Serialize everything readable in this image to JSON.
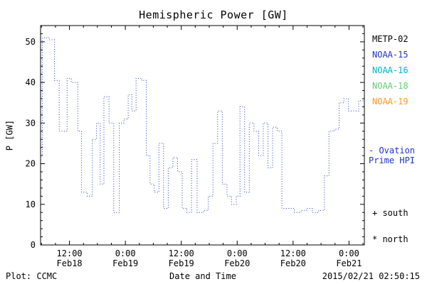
{
  "chart_data": {
    "type": "line",
    "style": "dotted-step",
    "title": "Hemispheric Power [GW]",
    "xlabel": "Date and Time",
    "ylabel": "P [GW]",
    "ylim": [
      0,
      54
    ],
    "xlim_hours": [
      5.8,
      75.3
    ],
    "x_origin": "hours since 2015-02-18 00:00",
    "y_ticks": [
      0,
      10,
      20,
      30,
      40,
      50
    ],
    "y_minor_step": 2,
    "x_minor_step_hours": 3,
    "x_major_ticks": [
      {
        "hour": 12,
        "time": "12:00",
        "date": "Feb18"
      },
      {
        "hour": 24,
        "time": "0:00",
        "date": "Feb19"
      },
      {
        "hour": 36,
        "time": "12:00",
        "date": "Feb19"
      },
      {
        "hour": 48,
        "time": "0:00",
        "date": "Feb20"
      },
      {
        "hour": 60,
        "time": "12:00",
        "date": "Feb20"
      },
      {
        "hour": 72,
        "time": "0:00",
        "date": "Feb21"
      }
    ],
    "series": [
      {
        "name": "Ovation Prime HPI",
        "color": "#2233cc",
        "points": [
          [
            5.9,
            22
          ],
          [
            6.2,
            51
          ],
          [
            7.6,
            50.5
          ],
          [
            8.8,
            40.5
          ],
          [
            9.8,
            28
          ],
          [
            11.5,
            41
          ],
          [
            12.4,
            40
          ],
          [
            13.8,
            28
          ],
          [
            14.6,
            13
          ],
          [
            15.8,
            12
          ],
          [
            16.9,
            26
          ],
          [
            17.8,
            30
          ],
          [
            18.6,
            15
          ],
          [
            19.4,
            36.5
          ],
          [
            20.5,
            30
          ],
          [
            21.5,
            8
          ],
          [
            22.7,
            30
          ],
          [
            23.7,
            31
          ],
          [
            24.6,
            37
          ],
          [
            25.4,
            33
          ],
          [
            26.3,
            41
          ],
          [
            27.5,
            40.5
          ],
          [
            28.5,
            22
          ],
          [
            29.3,
            15
          ],
          [
            30.2,
            13
          ],
          [
            31.2,
            25
          ],
          [
            32.2,
            9
          ],
          [
            33.2,
            19
          ],
          [
            34.2,
            21.5
          ],
          [
            35.2,
            18
          ],
          [
            36.2,
            9
          ],
          [
            37.2,
            8
          ],
          [
            38.2,
            21
          ],
          [
            39.4,
            8
          ],
          [
            40.8,
            8.5
          ],
          [
            41.8,
            12
          ],
          [
            42.8,
            25
          ],
          [
            43.8,
            33
          ],
          [
            44.8,
            15
          ],
          [
            45.8,
            12
          ],
          [
            46.8,
            10
          ],
          [
            47.8,
            12
          ],
          [
            48.6,
            34
          ],
          [
            49.6,
            13
          ],
          [
            50.6,
            30
          ],
          [
            51.6,
            28
          ],
          [
            52.6,
            22
          ],
          [
            53.6,
            30
          ],
          [
            54.6,
            19
          ],
          [
            55.6,
            29
          ],
          [
            56.6,
            28
          ],
          [
            57.6,
            9
          ],
          [
            58.9,
            9
          ],
          [
            60.3,
            8
          ],
          [
            61.7,
            8.5
          ],
          [
            62.9,
            9
          ],
          [
            64.1,
            8
          ],
          [
            65.5,
            8.5
          ],
          [
            66.7,
            17
          ],
          [
            67.7,
            28
          ],
          [
            68.9,
            28.5
          ],
          [
            69.9,
            35
          ],
          [
            70.9,
            36
          ],
          [
            71.9,
            33
          ],
          [
            72.9,
            33
          ],
          [
            74.1,
            35.5
          ]
        ]
      }
    ]
  },
  "legend": {
    "satellites": [
      {
        "label": "METP-02",
        "color": "#000000"
      },
      {
        "label": "NOAA-15",
        "color": "#2233cc"
      },
      {
        "label": "NOAA-16",
        "color": "#00b2c8"
      },
      {
        "label": "NOAA-18",
        "color": "#63cc74"
      },
      {
        "label": "NOAA-19",
        "color": "#ff9822"
      }
    ],
    "ovation_line1": "- Ovation",
    "ovation_line2": "Prime HPI",
    "ovation_color": "#2233cc",
    "south": "+ south",
    "north": "* north"
  },
  "footer": {
    "left": "Plot: CCMC",
    "right": "2015/02/21 02:50:15"
  }
}
